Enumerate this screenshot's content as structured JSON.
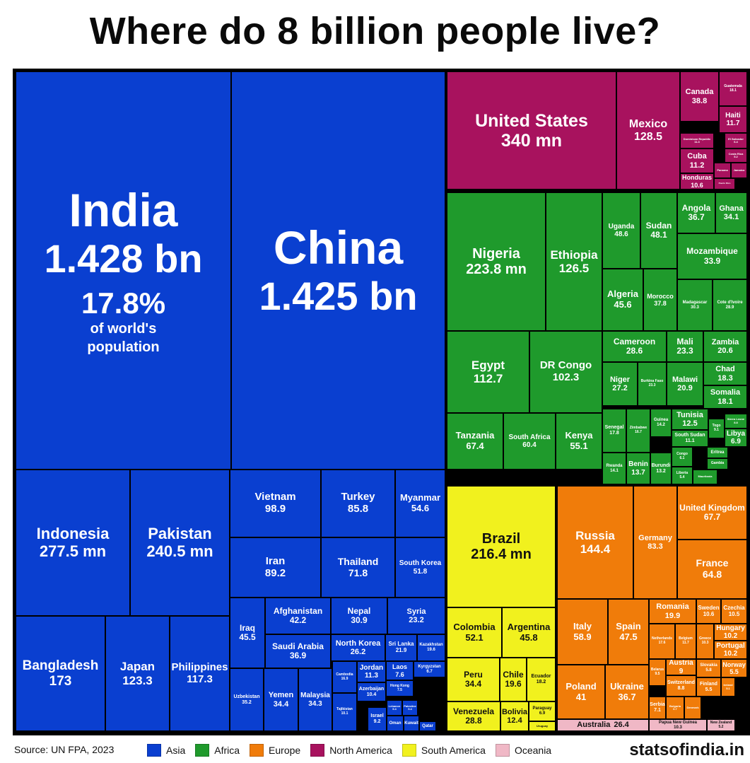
{
  "title": "Where do 8 billion people live?",
  "source": "Source: UN FPA, 2023",
  "brand": "statsofindia.in",
  "colors": {
    "Asia": "#0a3fd0",
    "Africa": "#1f9a2c",
    "Europe": "#f07c0a",
    "North America": "#a8125e",
    "South America": "#f1f11e",
    "Oceania": "#f0b8c6"
  },
  "legend": [
    {
      "label": "Asia",
      "key": "Asia"
    },
    {
      "label": "Africa",
      "key": "Africa"
    },
    {
      "label": "Europe",
      "key": "Europe"
    },
    {
      "label": "North America",
      "key": "North America"
    },
    {
      "label": "South America",
      "key": "South America"
    },
    {
      "label": "Oceania",
      "key": "Oceania"
    }
  ],
  "chart_data": {
    "type": "treemap",
    "title": "Where do 8 billion people live?",
    "annotation": {
      "country": "India",
      "share": "17.8%",
      "note": "of world's population"
    },
    "items": [
      {
        "name": "India",
        "value": "1.428 bn",
        "population_mn": 1428,
        "region": "Asia"
      },
      {
        "name": "China",
        "value": "1.425 bn",
        "population_mn": 1425,
        "region": "Asia"
      },
      {
        "name": "Indonesia",
        "value": "277.5 mn",
        "population_mn": 277.5,
        "region": "Asia"
      },
      {
        "name": "Pakistan",
        "value": "240.5 mn",
        "population_mn": 240.5,
        "region": "Asia"
      },
      {
        "name": "Bangladesh",
        "value": "173",
        "population_mn": 173,
        "region": "Asia"
      },
      {
        "name": "Japan",
        "value": "123.3",
        "population_mn": 123.3,
        "region": "Asia"
      },
      {
        "name": "Philippines",
        "value": "117.3",
        "population_mn": 117.3,
        "region": "Asia"
      },
      {
        "name": "Vietnam",
        "value": "98.9",
        "population_mn": 98.9,
        "region": "Asia"
      },
      {
        "name": "Turkey",
        "value": "85.8",
        "population_mn": 85.8,
        "region": "Asia"
      },
      {
        "name": "Myanmar",
        "value": "54.6",
        "population_mn": 54.6,
        "region": "Asia"
      },
      {
        "name": "Iran",
        "value": "89.2",
        "population_mn": 89.2,
        "region": "Asia"
      },
      {
        "name": "Thailand",
        "value": "71.8",
        "population_mn": 71.8,
        "region": "Asia"
      },
      {
        "name": "South Korea",
        "value": "51.8",
        "population_mn": 51.8,
        "region": "Asia"
      },
      {
        "name": "Iraq",
        "value": "45.5",
        "population_mn": 45.5,
        "region": "Asia"
      },
      {
        "name": "Afghanistan",
        "value": "42.2",
        "population_mn": 42.2,
        "region": "Asia"
      },
      {
        "name": "Nepal",
        "value": "30.9",
        "population_mn": 30.9,
        "region": "Asia"
      },
      {
        "name": "Syria",
        "value": "23.2",
        "population_mn": 23.2,
        "region": "Asia"
      },
      {
        "name": "Saudi Arabia",
        "value": "36.9",
        "population_mn": 36.9,
        "region": "Asia"
      },
      {
        "name": "North Korea",
        "value": "26.2",
        "population_mn": 26.2,
        "region": "Asia"
      },
      {
        "name": "Sri Lanka",
        "value": "21.9",
        "population_mn": 21.9,
        "region": "Asia"
      },
      {
        "name": "Kazakhstan",
        "value": "19.6",
        "population_mn": 19.6,
        "region": "Asia"
      },
      {
        "name": "Uzbekistan",
        "value": "35.2",
        "population_mn": 35.2,
        "region": "Asia"
      },
      {
        "name": "Yemen",
        "value": "34.4",
        "population_mn": 34.4,
        "region": "Asia"
      },
      {
        "name": "Malaysia",
        "value": "34.3",
        "population_mn": 34.3,
        "region": "Asia"
      },
      {
        "name": "Cambodia",
        "value": "16.9",
        "population_mn": 16.9,
        "region": "Asia"
      },
      {
        "name": "Jordan",
        "value": "11.3",
        "population_mn": 11.3,
        "region": "Asia"
      },
      {
        "name": "Laos",
        "value": "7.6",
        "population_mn": 7.6,
        "region": "Asia"
      },
      {
        "name": "Kyrgyzstan",
        "value": "6.7",
        "population_mn": 6.7,
        "region": "Asia"
      },
      {
        "name": "Azerbaijan",
        "value": "10.4",
        "population_mn": 10.4,
        "region": "Asia"
      },
      {
        "name": "Hong Kong",
        "value": "7.5",
        "population_mn": 7.5,
        "region": "Asia"
      },
      {
        "name": "Tajikistan",
        "value": "10.1",
        "population_mn": 10.1,
        "region": "Asia"
      },
      {
        "name": "Israel",
        "value": "9.2",
        "population_mn": 9.2,
        "region": "Asia"
      },
      {
        "name": "Lebanon",
        "value": "5.4",
        "population_mn": 5.4,
        "region": "Asia"
      },
      {
        "name": "Palestine",
        "value": "5.4",
        "population_mn": 5.4,
        "region": "Asia"
      },
      {
        "name": "Oman",
        "value": "",
        "population_mn": 4.6,
        "region": "Asia"
      },
      {
        "name": "Kuwait",
        "value": "",
        "population_mn": 4.3,
        "region": "Asia"
      },
      {
        "name": "Qatar",
        "value": "",
        "population_mn": 2.7,
        "region": "Asia"
      },
      {
        "name": "United States",
        "value": "340 mn",
        "population_mn": 340,
        "region": "North America"
      },
      {
        "name": "Mexico",
        "value": "128.5",
        "population_mn": 128.5,
        "region": "North America"
      },
      {
        "name": "Canada",
        "value": "38.8",
        "population_mn": 38.8,
        "region": "North America"
      },
      {
        "name": "Guatemala",
        "value": "18.1",
        "population_mn": 18.1,
        "region": "North America"
      },
      {
        "name": "Haiti",
        "value": "11.7",
        "population_mn": 11.7,
        "region": "North America"
      },
      {
        "name": "Dominican Republic",
        "value": "11.3",
        "population_mn": 11.3,
        "region": "North America"
      },
      {
        "name": "El Salvador",
        "value": "6.4",
        "population_mn": 6.4,
        "region": "North America"
      },
      {
        "name": "Cuba",
        "value": "11.2",
        "population_mn": 11.2,
        "region": "North America"
      },
      {
        "name": "Costa Rica",
        "value": "5.2",
        "population_mn": 5.2,
        "region": "North America"
      },
      {
        "name": "Honduras",
        "value": "10.6",
        "population_mn": 10.6,
        "region": "North America"
      },
      {
        "name": "Panama",
        "value": "",
        "population_mn": 4.5,
        "region": "North America"
      },
      {
        "name": "Jamaica",
        "value": "",
        "population_mn": 2.8,
        "region": "North America"
      },
      {
        "name": "Puerto Rico",
        "value": "",
        "population_mn": 3.3,
        "region": "North America"
      },
      {
        "name": "Nigeria",
        "value": "223.8 mn",
        "population_mn": 223.8,
        "region": "Africa"
      },
      {
        "name": "Ethiopia",
        "value": "126.5",
        "population_mn": 126.5,
        "region": "Africa"
      },
      {
        "name": "Uganda",
        "value": "48.6",
        "population_mn": 48.6,
        "region": "Africa"
      },
      {
        "name": "Sudan",
        "value": "48.1",
        "population_mn": 48.1,
        "region": "Africa"
      },
      {
        "name": "Angola",
        "value": "36.7",
        "population_mn": 36.7,
        "region": "Africa"
      },
      {
        "name": "Ghana",
        "value": "34.1",
        "population_mn": 34.1,
        "region": "Africa"
      },
      {
        "name": "Mozambique",
        "value": "33.9",
        "population_mn": 33.9,
        "region": "Africa"
      },
      {
        "name": "Algeria",
        "value": "45.6",
        "population_mn": 45.6,
        "region": "Africa"
      },
      {
        "name": "Morocco",
        "value": "37.8",
        "population_mn": 37.8,
        "region": "Africa"
      },
      {
        "name": "Madagascar",
        "value": "30.3",
        "population_mn": 30.3,
        "region": "Africa"
      },
      {
        "name": "Cote d'Ivoire",
        "value": "28.9",
        "population_mn": 28.9,
        "region": "Africa"
      },
      {
        "name": "Egypt",
        "value": "112.7",
        "population_mn": 112.7,
        "region": "Africa"
      },
      {
        "name": "DR Congo",
        "value": "102.3",
        "population_mn": 102.3,
        "region": "Africa"
      },
      {
        "name": "Cameroon",
        "value": "28.6",
        "population_mn": 28.6,
        "region": "Africa"
      },
      {
        "name": "Mali",
        "value": "23.3",
        "population_mn": 23.3,
        "region": "Africa"
      },
      {
        "name": "Zambia",
        "value": "20.6",
        "population_mn": 20.6,
        "region": "Africa"
      },
      {
        "name": "Chad",
        "value": "18.3",
        "population_mn": 18.3,
        "region": "Africa"
      },
      {
        "name": "Niger",
        "value": "27.2",
        "population_mn": 27.2,
        "region": "Africa"
      },
      {
        "name": "Burkina Faso",
        "value": "23.3",
        "population_mn": 23.3,
        "region": "Africa"
      },
      {
        "name": "Malawi",
        "value": "20.9",
        "population_mn": 20.9,
        "region": "Africa"
      },
      {
        "name": "Somalia",
        "value": "18.1",
        "population_mn": 18.1,
        "region": "Africa"
      },
      {
        "name": "Tanzania",
        "value": "67.4",
        "population_mn": 67.4,
        "region": "Africa"
      },
      {
        "name": "South Africa",
        "value": "60.4",
        "population_mn": 60.4,
        "region": "Africa"
      },
      {
        "name": "Kenya",
        "value": "55.1",
        "population_mn": 55.1,
        "region": "Africa"
      },
      {
        "name": "Senegal",
        "value": "17.8",
        "population_mn": 17.8,
        "region": "Africa"
      },
      {
        "name": "Zimbabwe",
        "value": "16.7",
        "population_mn": 16.7,
        "region": "Africa"
      },
      {
        "name": "Guinea",
        "value": "14.2",
        "population_mn": 14.2,
        "region": "Africa"
      },
      {
        "name": "Tunisia",
        "value": "12.5",
        "population_mn": 12.5,
        "region": "Africa"
      },
      {
        "name": "Togo",
        "value": "9.1",
        "population_mn": 9.1,
        "region": "Africa"
      },
      {
        "name": "Sierra Leone",
        "value": "8.8",
        "population_mn": 8.8,
        "region": "Africa"
      },
      {
        "name": "South Sudan",
        "value": "11.1",
        "population_mn": 11.1,
        "region": "Africa"
      },
      {
        "name": "Libya",
        "value": "6.9",
        "population_mn": 6.9,
        "region": "Africa"
      },
      {
        "name": "Rwanda",
        "value": "14.1",
        "population_mn": 14.1,
        "region": "Africa"
      },
      {
        "name": "Benin",
        "value": "13.7",
        "population_mn": 13.7,
        "region": "Africa"
      },
      {
        "name": "Burundi",
        "value": "13.2",
        "population_mn": 13.2,
        "region": "Africa"
      },
      {
        "name": "Congo",
        "value": "6.1",
        "population_mn": 6.1,
        "region": "Africa"
      },
      {
        "name": "Liberia",
        "value": "5.4",
        "population_mn": 5.4,
        "region": "Africa"
      },
      {
        "name": "Eritrea",
        "value": "",
        "population_mn": 3.7,
        "region": "Africa"
      },
      {
        "name": "Gambia",
        "value": "",
        "population_mn": 2.8,
        "region": "Africa"
      },
      {
        "name": "Mauritania",
        "value": "",
        "population_mn": 4.9,
        "region": "Africa"
      },
      {
        "name": "Brazil",
        "value": "216.4 mn",
        "population_mn": 216.4,
        "region": "South America"
      },
      {
        "name": "Colombia",
        "value": "52.1",
        "population_mn": 52.1,
        "region": "South America"
      },
      {
        "name": "Argentina",
        "value": "45.8",
        "population_mn": 45.8,
        "region": "South America"
      },
      {
        "name": "Peru",
        "value": "34.4",
        "population_mn": 34.4,
        "region": "South America"
      },
      {
        "name": "Chile",
        "value": "19.6",
        "population_mn": 19.6,
        "region": "South America"
      },
      {
        "name": "Ecuador",
        "value": "18.2",
        "population_mn": 18.2,
        "region": "South America"
      },
      {
        "name": "Venezuela",
        "value": "28.8",
        "population_mn": 28.8,
        "region": "South America"
      },
      {
        "name": "Bolivia",
        "value": "12.4",
        "population_mn": 12.4,
        "region": "South America"
      },
      {
        "name": "Paraguay",
        "value": "6.9",
        "population_mn": 6.9,
        "region": "South America"
      },
      {
        "name": "Uruguay",
        "value": "",
        "population_mn": 3.4,
        "region": "South America"
      },
      {
        "name": "Russia",
        "value": "144.4",
        "population_mn": 144.4,
        "region": "Europe"
      },
      {
        "name": "Germany",
        "value": "83.3",
        "population_mn": 83.3,
        "region": "Europe"
      },
      {
        "name": "United Kingdom",
        "value": "67.7",
        "population_mn": 67.7,
        "region": "Europe"
      },
      {
        "name": "France",
        "value": "64.8",
        "population_mn": 64.8,
        "region": "Europe"
      },
      {
        "name": "Italy",
        "value": "58.9",
        "population_mn": 58.9,
        "region": "Europe"
      },
      {
        "name": "Spain",
        "value": "47.5",
        "population_mn": 47.5,
        "region": "Europe"
      },
      {
        "name": "Romania",
        "value": "19.9",
        "population_mn": 19.9,
        "region": "Europe"
      },
      {
        "name": "Sweden",
        "value": "10.6",
        "population_mn": 10.6,
        "region": "Europe"
      },
      {
        "name": "Czechia",
        "value": "10.5",
        "population_mn": 10.5,
        "region": "Europe"
      },
      {
        "name": "Netherlands",
        "value": "17.6",
        "population_mn": 17.6,
        "region": "Europe"
      },
      {
        "name": "Belgium",
        "value": "11.7",
        "population_mn": 11.7,
        "region": "Europe"
      },
      {
        "name": "Greece",
        "value": "10.3",
        "population_mn": 10.3,
        "region": "Europe"
      },
      {
        "name": "Hungary",
        "value": "10.2",
        "population_mn": 10.2,
        "region": "Europe"
      },
      {
        "name": "Portugal",
        "value": "10.2",
        "population_mn": 10.2,
        "region": "Europe"
      },
      {
        "name": "Poland",
        "value": "41",
        "population_mn": 41,
        "region": "Europe"
      },
      {
        "name": "Ukraine",
        "value": "36.7",
        "population_mn": 36.7,
        "region": "Europe"
      },
      {
        "name": "Belarus",
        "value": "9.5",
        "population_mn": 9.5,
        "region": "Europe"
      },
      {
        "name": "Austria",
        "value": "9",
        "population_mn": 9,
        "region": "Europe"
      },
      {
        "name": "Switzerland",
        "value": "8.8",
        "population_mn": 8.8,
        "region": "Europe"
      },
      {
        "name": "Slovakia",
        "value": "5.8",
        "population_mn": 5.8,
        "region": "Europe"
      },
      {
        "name": "Finland",
        "value": "5.5",
        "population_mn": 5.5,
        "region": "Europe"
      },
      {
        "name": "Ireland",
        "value": "5.1",
        "population_mn": 5.1,
        "region": "Europe"
      },
      {
        "name": "Norway",
        "value": "5.5",
        "population_mn": 5.5,
        "region": "Europe"
      },
      {
        "name": "Serbia",
        "value": "7.1",
        "population_mn": 7.1,
        "region": "Europe"
      },
      {
        "name": "Bulgaria",
        "value": "6.7",
        "population_mn": 6.7,
        "region": "Europe"
      },
      {
        "name": "Denmark",
        "value": "",
        "population_mn": 5.9,
        "region": "Europe"
      },
      {
        "name": "Australia",
        "value": "26.4",
        "population_mn": 26.4,
        "region": "Oceania"
      },
      {
        "name": "Papua New Guinea",
        "value": "10.3",
        "population_mn": 10.3,
        "region": "Oceania"
      },
      {
        "name": "New Zealand",
        "value": "5.2",
        "population_mn": 5.2,
        "region": "Oceania"
      }
    ]
  }
}
